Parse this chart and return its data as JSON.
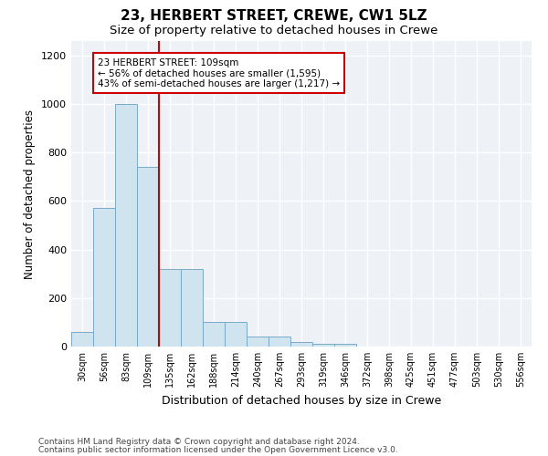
{
  "title": "23, HERBERT STREET, CREWE, CW1 5LZ",
  "subtitle": "Size of property relative to detached houses in Crewe",
  "xlabel": "Distribution of detached houses by size in Crewe",
  "ylabel": "Number of detached properties",
  "categories": [
    "30sqm",
    "56sqm",
    "83sqm",
    "109sqm",
    "135sqm",
    "162sqm",
    "188sqm",
    "214sqm",
    "240sqm",
    "267sqm",
    "293sqm",
    "319sqm",
    "346sqm",
    "372sqm",
    "398sqm",
    "425sqm",
    "451sqm",
    "477sqm",
    "503sqm",
    "530sqm",
    "556sqm"
  ],
  "bar_values": [
    60,
    570,
    1000,
    740,
    320,
    320,
    100,
    100,
    40,
    40,
    18,
    10,
    10,
    0,
    0,
    0,
    0,
    0,
    0,
    0,
    0
  ],
  "bar_color": "#d0e4f0",
  "bar_edge_color": "#7aaac8",
  "property_line_x": 3,
  "annotation_line1": "23 HERBERT STREET: 109sqm",
  "annotation_line2": "← 56% of detached houses are smaller (1,595)",
  "annotation_line3": "43% of semi-detached houses are larger (1,217) →",
  "annotation_color": "#cc0000",
  "ylim": [
    0,
    1260
  ],
  "yticks": [
    0,
    200,
    400,
    600,
    800,
    1000,
    1200
  ],
  "footer_line1": "Contains HM Land Registry data © Crown copyright and database right 2024.",
  "footer_line2": "Contains public sector information licensed under the Open Government Licence v3.0.",
  "background_color": "#eef2f7",
  "title_fontsize": 11,
  "subtitle_fontsize": 9.5,
  "xlabel_fontsize": 9,
  "ylabel_fontsize": 8.5,
  "footer_fontsize": 6.5
}
